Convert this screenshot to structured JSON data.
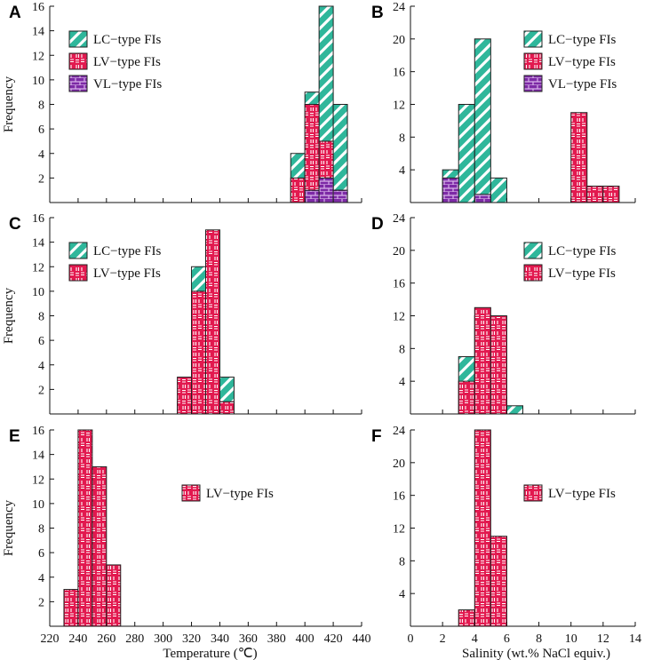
{
  "figure": {
    "colors": {
      "LC": "#2fb79b",
      "LV": "#e2194f",
      "VL": "#7d2aa6",
      "axis": "#111111",
      "bar_edge": "#222222"
    },
    "icons": {
      "LC": "diagonal-stripe-fill",
      "LV": "ladder-pattern-fill",
      "VL": "brick-pattern-fill"
    },
    "x_axis_temperature": "Temperature (℃)",
    "x_axis_salinity": "Salinity  (wt.% NaCl equiv.)"
  },
  "chart_data": [
    {
      "id": "A",
      "type": "bar",
      "stacking": "overlay",
      "quantity": "temperature",
      "ylabel": "Frequency",
      "xlabel": "",
      "xlim": [
        220,
        440
      ],
      "ylim": [
        0,
        16
      ],
      "bin_width": 10,
      "x_ticks": [
        "220",
        "240",
        "260",
        "280",
        "300",
        "320",
        "340",
        "360",
        "380",
        "400",
        "420",
        "440"
      ],
      "x_tick_labels_shown": false,
      "y_ticks": [
        "2",
        "4",
        "6",
        "8",
        "10",
        "12",
        "14",
        "16"
      ],
      "legend": [
        "LC−type FIs",
        "LV−type FIs",
        "VL−type FIs"
      ],
      "series": [
        {
          "name": "LC−type FIs",
          "key": "LC",
          "bins": [
            390,
            400,
            410,
            420
          ],
          "values": [
            4,
            9,
            16,
            8
          ]
        },
        {
          "name": "LV−type FIs",
          "key": "LV",
          "bins": [
            390,
            400,
            410,
            420
          ],
          "values": [
            2,
            8,
            5,
            1
          ]
        },
        {
          "name": "VL−type FIs",
          "key": "VL",
          "bins": [
            400,
            410,
            420
          ],
          "values": [
            1,
            2,
            1
          ]
        }
      ]
    },
    {
      "id": "B",
      "type": "bar",
      "stacking": "overlay",
      "quantity": "salinity",
      "ylabel": "",
      "xlabel": "",
      "xlim": [
        0,
        14
      ],
      "ylim": [
        0,
        24
      ],
      "bin_width": 1,
      "x_ticks": [
        "0",
        "2",
        "4",
        "6",
        "8",
        "10",
        "12",
        "14"
      ],
      "x_tick_labels_shown": false,
      "y_ticks": [
        "4",
        "8",
        "12",
        "16",
        "20",
        "24"
      ],
      "legend": [
        "LC−type FIs",
        "LV−type FIs",
        "VL−type FIs"
      ],
      "series": [
        {
          "name": "LC−type FIs",
          "key": "LC",
          "bins": [
            2,
            3,
            4,
            5
          ],
          "values": [
            4,
            12,
            20,
            3
          ]
        },
        {
          "name": "LV−type FIs",
          "key": "LV",
          "bins": [
            10,
            11,
            12
          ],
          "values": [
            11,
            2,
            2
          ]
        },
        {
          "name": "VL−type FIs",
          "key": "VL",
          "bins": [
            2,
            4
          ],
          "values": [
            3,
            1
          ]
        }
      ]
    },
    {
      "id": "C",
      "type": "bar",
      "stacking": "overlay",
      "quantity": "temperature",
      "ylabel": "Frequency",
      "xlabel": "",
      "xlim": [
        220,
        440
      ],
      "ylim": [
        0,
        16
      ],
      "bin_width": 10,
      "x_ticks": [
        "220",
        "240",
        "260",
        "280",
        "300",
        "320",
        "340",
        "360",
        "380",
        "400",
        "420",
        "440"
      ],
      "x_tick_labels_shown": false,
      "y_ticks": [
        "2",
        "4",
        "6",
        "8",
        "10",
        "12",
        "14",
        "16"
      ],
      "legend": [
        "LC−type FIs",
        "LV−type FIs"
      ],
      "series": [
        {
          "name": "LC−type FIs",
          "key": "LC",
          "bins": [
            310,
            320,
            330,
            340
          ],
          "values": [
            1,
            12,
            6,
            3
          ]
        },
        {
          "name": "LV−type FIs",
          "key": "LV",
          "bins": [
            310,
            320,
            330,
            340
          ],
          "values": [
            3,
            10,
            15,
            1
          ]
        }
      ]
    },
    {
      "id": "D",
      "type": "bar",
      "stacking": "overlay",
      "quantity": "salinity",
      "ylabel": "",
      "xlabel": "",
      "xlim": [
        0,
        14
      ],
      "ylim": [
        0,
        24
      ],
      "bin_width": 1,
      "x_ticks": [
        "0",
        "2",
        "4",
        "6",
        "8",
        "10",
        "12",
        "14"
      ],
      "x_tick_labels_shown": false,
      "y_ticks": [
        "4",
        "8",
        "12",
        "16",
        "20",
        "24"
      ],
      "legend": [
        "LC−type FIs",
        "LV−type FIs"
      ],
      "series": [
        {
          "name": "LC−type FIs",
          "key": "LC",
          "bins": [
            3,
            4,
            5,
            6
          ],
          "values": [
            7,
            12,
            2,
            1
          ]
        },
        {
          "name": "LV−type FIs",
          "key": "LV",
          "bins": [
            3,
            4,
            5
          ],
          "values": [
            4,
            13,
            12
          ]
        }
      ]
    },
    {
      "id": "E",
      "type": "bar",
      "stacking": "overlay",
      "quantity": "temperature",
      "ylabel": "Frequency",
      "xlabel": "Temperature (℃)",
      "xlim": [
        220,
        440
      ],
      "ylim": [
        0,
        16
      ],
      "bin_width": 10,
      "x_ticks": [
        "220",
        "240",
        "260",
        "280",
        "300",
        "320",
        "340",
        "360",
        "380",
        "400",
        "420",
        "440"
      ],
      "x_tick_labels_shown": true,
      "y_ticks": [
        "2",
        "4",
        "6",
        "8",
        "10",
        "12",
        "14",
        "16"
      ],
      "legend": [
        "LV−type FIs"
      ],
      "series": [
        {
          "name": "LV−type FIs",
          "key": "LV",
          "bins": [
            230,
            240,
            250,
            260
          ],
          "values": [
            3,
            16,
            13,
            5
          ]
        }
      ]
    },
    {
      "id": "F",
      "type": "bar",
      "stacking": "overlay",
      "quantity": "salinity",
      "ylabel": "",
      "xlabel": "Salinity  (wt.% NaCl equiv.)",
      "xlim": [
        0,
        14
      ],
      "ylim": [
        0,
        24
      ],
      "bin_width": 1,
      "x_ticks": [
        "0",
        "2",
        "4",
        "6",
        "8",
        "10",
        "12",
        "14"
      ],
      "x_tick_labels_shown": true,
      "y_ticks": [
        "4",
        "8",
        "12",
        "16",
        "20",
        "24"
      ],
      "legend": [
        "LV−type FIs"
      ],
      "series": [
        {
          "name": "LV−type FIs",
          "key": "LV",
          "bins": [
            3,
            4,
            5
          ],
          "values": [
            2,
            24,
            11
          ]
        }
      ]
    }
  ]
}
